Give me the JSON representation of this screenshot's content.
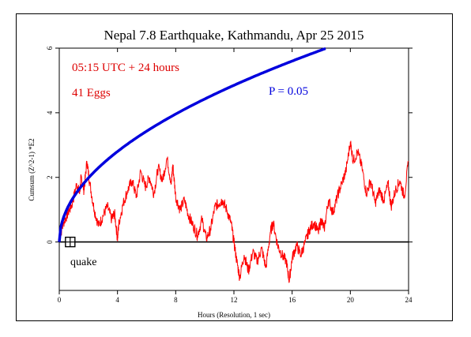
{
  "chart_data": {
    "type": "line",
    "title": "Nepal 7.8 Earthquake, Kathmandu, Apr 25 2015",
    "xlabel": "Hours (Resolution, 1 sec)",
    "ylabel": "Cumsum (Z^2-1)  *E2",
    "xlim": [
      0,
      24
    ],
    "ylim": [
      -1.5,
      6
    ],
    "xticks": [
      0,
      4,
      8,
      12,
      16,
      20,
      24
    ],
    "yticks": [
      0,
      2,
      4,
      6
    ],
    "grid": false,
    "annotations": {
      "time_range": "05:15 UTC + 24 hours",
      "eggs": "41 Eggs",
      "probability": "P = 0.05",
      "event_label": "quake"
    },
    "event_marker": {
      "x": 0.75,
      "y": 0
    },
    "colors": {
      "cumsum": "#ff0000",
      "probability": "#0000dd",
      "annotation_red": "#dd0000",
      "axis": "#000000"
    },
    "series": [
      {
        "color": "#ff0000",
        "x": [
          0,
          0.3,
          0.6,
          0.9,
          1.2,
          1.4,
          1.5,
          1.7,
          1.9,
          2.1,
          2.4,
          2.7,
          3.0,
          3.3,
          3.6,
          3.8,
          4.0,
          4.1,
          4.4,
          4.7,
          5.0,
          5.3,
          5.6,
          5.9,
          6.2,
          6.5,
          6.8,
          7.1,
          7.4,
          7.7,
          7.8,
          8.0,
          8.3,
          8.6,
          8.9,
          9.2,
          9.5,
          9.8,
          10.1,
          10.4,
          10.7,
          11.0,
          11.2,
          11.5,
          11.8,
          12.0,
          12.2,
          12.4,
          12.7,
          13.0,
          13.3,
          13.6,
          13.9,
          14.2,
          14.5,
          14.7,
          15.0,
          15.3,
          15.6,
          15.8,
          16.0,
          16.3,
          16.6,
          16.9,
          17.2,
          17.5,
          17.8,
          18.0,
          18.2,
          18.5,
          18.8,
          19.1,
          19.4,
          19.7,
          20.0,
          20.2,
          20.5,
          20.8,
          21.1,
          21.4,
          21.7,
          22.0,
          22.3,
          22.6,
          22.8,
          23.1,
          23.4,
          23.7,
          24.0
        ],
        "y": [
          0.1,
          0.6,
          0.9,
          1.2,
          1.8,
          1.5,
          2.0,
          1.6,
          2.5,
          1.8,
          1.0,
          0.5,
          0.8,
          1.1,
          0.7,
          0.9,
          0.1,
          0.6,
          1.2,
          1.6,
          1.9,
          1.4,
          2.2,
          1.7,
          2.0,
          1.5,
          2.3,
          1.9,
          2.6,
          1.8,
          2.4,
          1.4,
          1.0,
          1.3,
          0.8,
          0.5,
          0.2,
          0.7,
          0.1,
          0.4,
          1.1,
          1.2,
          1.3,
          1.0,
          0.6,
          0.0,
          -0.6,
          -1.1,
          -0.4,
          -0.9,
          -0.3,
          -0.6,
          -0.2,
          -0.8,
          0.3,
          0.6,
          -0.1,
          -0.4,
          -0.6,
          -1.2,
          -0.5,
          -0.1,
          -0.4,
          0.0,
          0.4,
          0.6,
          0.3,
          0.7,
          0.4,
          1.3,
          0.9,
          1.4,
          1.8,
          2.2,
          3.1,
          2.5,
          2.8,
          2.3,
          1.5,
          1.9,
          1.2,
          1.6,
          1.3,
          1.8,
          1.1,
          1.6,
          1.9,
          1.4,
          2.5
        ]
      },
      {
        "color": "#0000dd",
        "equation": "y = 1.4 * sqrt(x)",
        "x": [
          0,
          0.25,
          0.5,
          1,
          1.5,
          2,
          3,
          4,
          5,
          6,
          7,
          8,
          9,
          10,
          11,
          12,
          13,
          14,
          15,
          16,
          17,
          18,
          18.4
        ],
        "y": [
          0,
          0.7,
          0.99,
          1.4,
          1.71,
          1.98,
          2.42,
          2.8,
          3.13,
          3.43,
          3.7,
          3.96,
          4.2,
          4.43,
          4.64,
          4.85,
          5.05,
          5.24,
          5.42,
          5.6,
          5.77,
          5.94,
          6.0
        ]
      }
    ]
  }
}
